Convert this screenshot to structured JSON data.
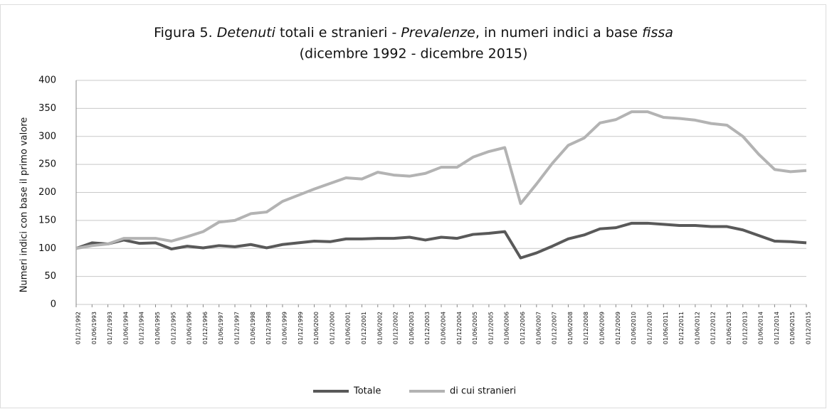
{
  "chart_data": {
    "type": "line",
    "title": [
      {
        "text": "Figura 5. ",
        "italic": false
      },
      {
        "text": "Detenuti",
        "italic": true
      },
      {
        "text": " totali e stranieri - ",
        "italic": false
      },
      {
        "text": "Prevalenze",
        "italic": true
      },
      {
        "text": ", in numeri indici a base ",
        "italic": false
      },
      {
        "text": "fissa",
        "italic": true
      }
    ],
    "subtitle": "(dicembre 1992 - dicembre 2015)",
    "ylabel": "Numeri indici con base il primo valore",
    "categories": [
      "01/12/1992",
      "01/06/1993",
      "01/12/1993",
      "01/06/1994",
      "01/12/1994",
      "01/06/1995",
      "01/12/1995",
      "01/06/1996",
      "01/12/1996",
      "01/06/1997",
      "01/12/1997",
      "01/06/1998",
      "01/12/1998",
      "01/06/1999",
      "01/12/1999",
      "01/06/2000",
      "01/12/2000",
      "01/06/2001",
      "01/12/2001",
      "01/06/2002",
      "01/12/2002",
      "01/06/2003",
      "01/12/2003",
      "01/06/2004",
      "01/12/2004",
      "01/06/2005",
      "01/12/2005",
      "01/06/2006",
      "01/12/2006",
      "01/06/2007",
      "01/12/2007",
      "01/06/2008",
      "01/12/2008",
      "01/06/2009",
      "01/12/2009",
      "01/06/2010",
      "01/12/2010",
      "01/06/2011",
      "01/12/2011",
      "01/06/2012",
      "01/12/2012",
      "01/06/2013",
      "01/12/2013",
      "01/06/2014",
      "01/12/2014",
      "01/06/2015",
      "01/12/2015"
    ],
    "series": [
      {
        "name": "Totale",
        "color": "#595959",
        "values": [
          100,
          110,
          108,
          115,
          109,
          110,
          99,
          104,
          101,
          105,
          103,
          107,
          101,
          107,
          110,
          113,
          112,
          117,
          117,
          118,
          118,
          120,
          115,
          120,
          118,
          125,
          127,
          130,
          83,
          92,
          104,
          117,
          124,
          135,
          137,
          145,
          145,
          143,
          141,
          141,
          139,
          139,
          133,
          123,
          113,
          112,
          110
        ]
      },
      {
        "name": "di cui stranieri",
        "color": "#b3b3b3",
        "values": [
          100,
          105,
          108,
          118,
          118,
          118,
          113,
          121,
          130,
          147,
          150,
          162,
          165,
          184,
          195,
          206,
          216,
          226,
          224,
          236,
          231,
          229,
          234,
          245,
          245,
          263,
          273,
          280,
          180,
          215,
          252,
          284,
          297,
          324,
          330,
          344,
          344,
          334,
          332,
          329,
          323,
          320,
          300,
          268,
          241,
          237,
          239
        ]
      }
    ],
    "ylim": [
      0,
      400
    ],
    "yticks": [
      0,
      50,
      100,
      150,
      200,
      250,
      300,
      350,
      400
    ],
    "grid": true,
    "legend": "bottom"
  }
}
